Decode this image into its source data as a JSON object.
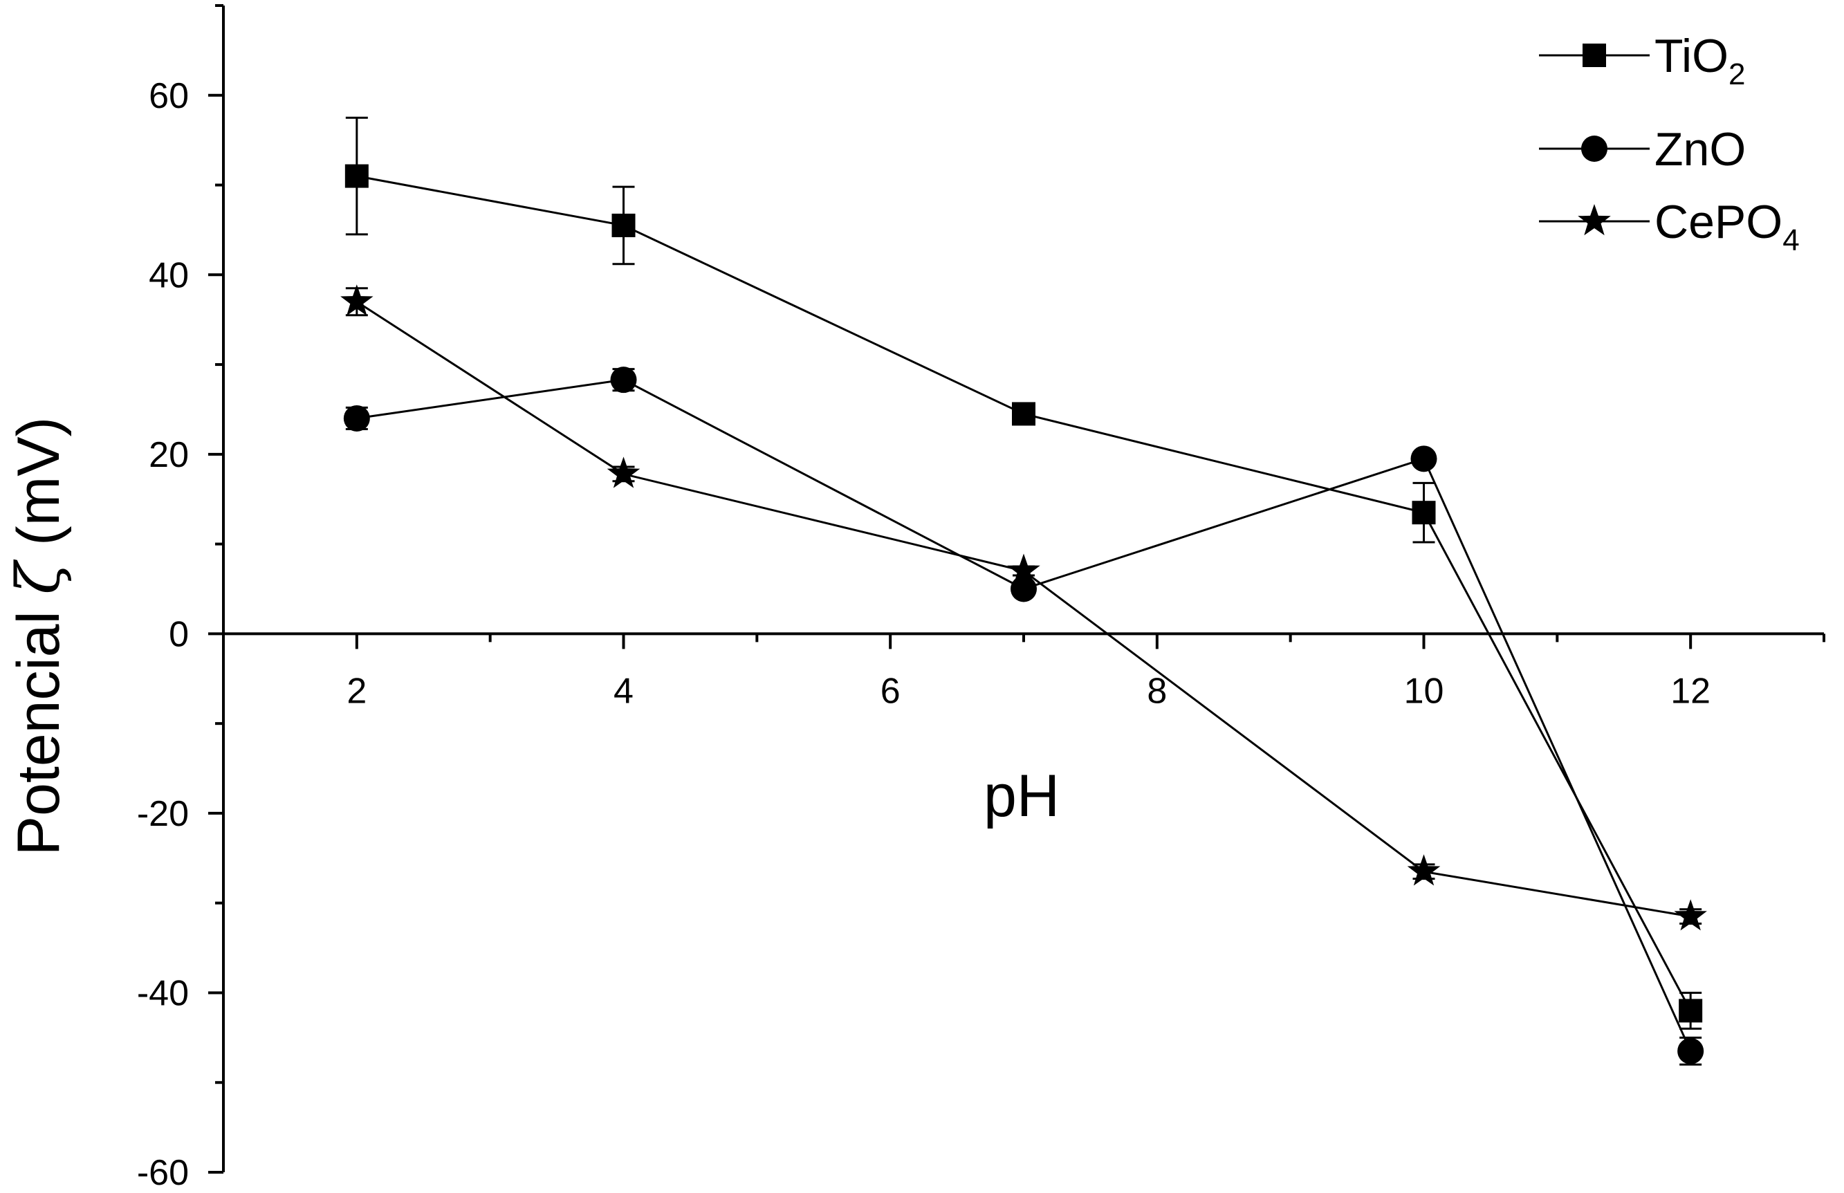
{
  "chart_data": {
    "type": "line",
    "title": "",
    "xlabel": "pH",
    "ylabel_prefix": "Potencial ",
    "ylabel_symbol": "ζ",
    "ylabel_suffix": " (mV)",
    "xlim": [
      1,
      13
    ],
    "ylim": [
      -60,
      70
    ],
    "xticks": [
      2,
      4,
      6,
      8,
      10,
      12
    ],
    "yticks": [
      -60,
      -40,
      -20,
      0,
      20,
      40,
      60
    ],
    "grid": false,
    "legend_position": "top-right",
    "series": [
      {
        "name": "TiO",
        "name_subscript": "2",
        "marker": "square",
        "x": [
          2,
          4,
          7,
          10,
          12
        ],
        "y": [
          51,
          45.5,
          24.5,
          13.5,
          -42
        ],
        "yerr": [
          6.5,
          4.3,
          0.8,
          3.3,
          2
        ]
      },
      {
        "name": "ZnO",
        "name_subscript": "",
        "marker": "circle",
        "x": [
          2,
          4,
          7,
          10,
          12
        ],
        "y": [
          24,
          28.3,
          5,
          19.5,
          -46.5
        ],
        "yerr": [
          1.2,
          1.2,
          0.5,
          0.5,
          1.5
        ]
      },
      {
        "name": "CePO",
        "name_subscript": "4",
        "marker": "star",
        "x": [
          2,
          4,
          7,
          10,
          12
        ],
        "y": [
          37,
          17.8,
          7,
          -26.5,
          -31.5
        ],
        "yerr": [
          1.5,
          0.8,
          0.5,
          0.8,
          0.8
        ]
      }
    ]
  }
}
